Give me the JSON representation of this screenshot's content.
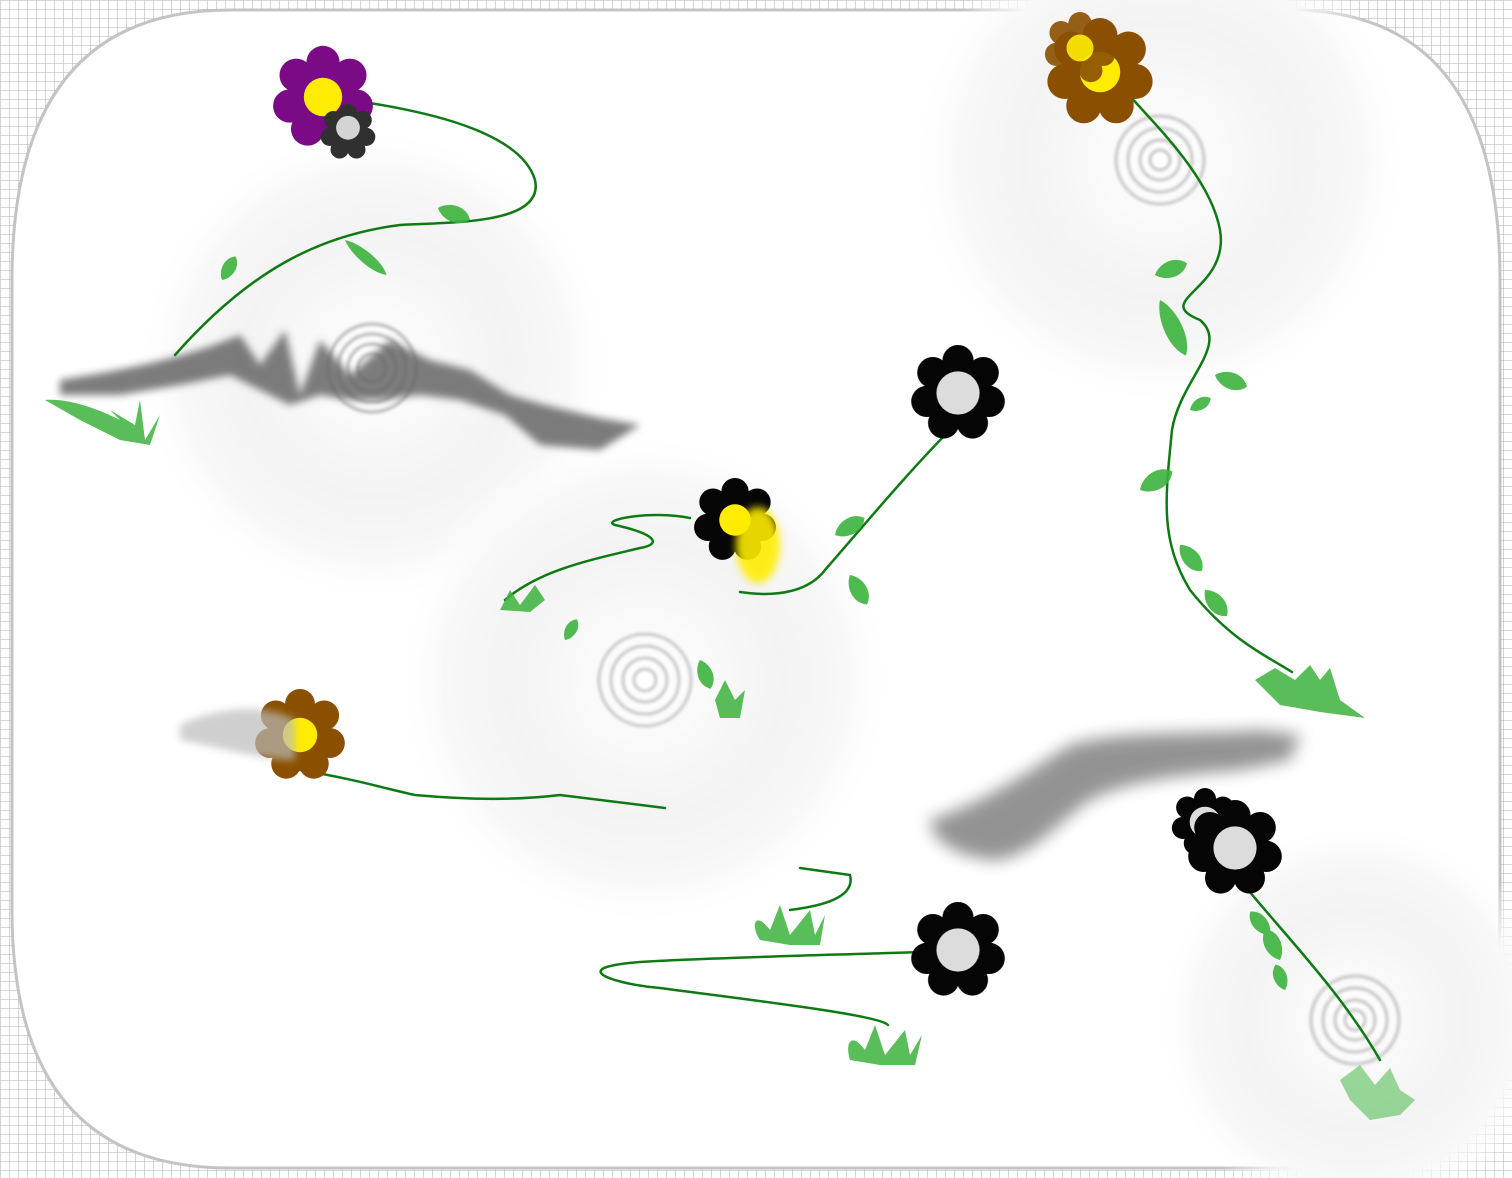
{
  "game": {
    "scene": "flower-garden",
    "background": "#ffffff",
    "frame_color": "#c4c4c4",
    "stem_color": "#0f7a14",
    "leaf_color": "#3bb33c",
    "smudge_color": "#6e6e6e"
  },
  "flowers": [
    {
      "name": "purple-flower",
      "petal_color": "#7a0a86",
      "center_color": "#ffec00",
      "interactable": true
    },
    {
      "name": "brown-flower-top-right",
      "petal_color": "#8a5000",
      "center_color": "#ffec00",
      "interactable": true
    },
    {
      "name": "black-flower-mid-right",
      "petal_color": "#050505",
      "center_color": "#dcdcdc",
      "interactable": true
    },
    {
      "name": "black-yellow-flower-center",
      "petal_color": "#050505",
      "center_color": "#ffec00",
      "interactable": true
    },
    {
      "name": "brown-flower-left",
      "petal_color": "#8a5000",
      "center_color": "#ffec00",
      "interactable": true
    },
    {
      "name": "black-flower-bottom",
      "petal_color": "#050505",
      "center_color": "#dcdcdc",
      "interactable": true
    },
    {
      "name": "black-flower-bottom-right",
      "petal_color": "#050505",
      "center_color": "#dcdcdc",
      "interactable": true
    }
  ]
}
